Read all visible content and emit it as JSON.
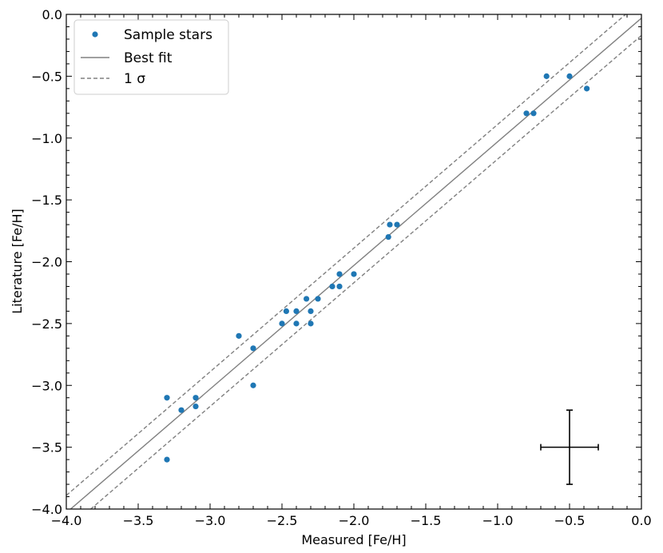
{
  "chart_data": {
    "type": "scatter",
    "xlabel": "Measured [Fe/H]",
    "ylabel": "Literature [Fe/H]",
    "xlim": [
      -4.0,
      0.0
    ],
    "ylim": [
      -4.0,
      0.0
    ],
    "x_ticks": [
      "−4.0",
      "−3.5",
      "−3.0",
      "−2.5",
      "−2.0",
      "−1.5",
      "−1.0",
      "−0.5",
      "0.0"
    ],
    "y_ticks": [
      "0.0",
      "−0.5",
      "−1.0",
      "−1.5",
      "−2.0",
      "−2.5",
      "−3.0",
      "−3.5",
      "−4.0"
    ],
    "grid": false,
    "legend_position": "top-left",
    "colors": {
      "points": "#1f77b4",
      "fit": "#808080",
      "sigma": "#808080",
      "errorbar": "#000000"
    },
    "series": [
      {
        "name": "Sample stars",
        "points": [
          [
            -3.3,
            -3.1
          ],
          [
            -3.3,
            -3.6
          ],
          [
            -3.2,
            -3.2
          ],
          [
            -3.1,
            -3.1
          ],
          [
            -3.1,
            -3.17
          ],
          [
            -2.8,
            -2.6
          ],
          [
            -2.7,
            -2.7
          ],
          [
            -2.7,
            -3.0
          ],
          [
            -2.5,
            -2.5
          ],
          [
            -2.47,
            -2.4
          ],
          [
            -2.4,
            -2.4
          ],
          [
            -2.4,
            -2.5
          ],
          [
            -2.33,
            -2.3
          ],
          [
            -2.3,
            -2.4
          ],
          [
            -2.3,
            -2.5
          ],
          [
            -2.25,
            -2.3
          ],
          [
            -2.15,
            -2.2
          ],
          [
            -2.1,
            -2.1
          ],
          [
            -2.1,
            -2.2
          ],
          [
            -2.0,
            -2.1
          ],
          [
            -1.76,
            -1.8
          ],
          [
            -1.75,
            -1.7
          ],
          [
            -1.7,
            -1.7
          ],
          [
            -0.8,
            -0.8
          ],
          [
            -0.75,
            -0.8
          ],
          [
            -0.66,
            -0.5
          ],
          [
            -0.5,
            -0.5
          ],
          [
            -0.38,
            -0.6
          ]
        ]
      },
      {
        "name": "Best fit",
        "line": {
          "slope": 1.0,
          "intercept": -0.03
        }
      },
      {
        "name": "1 σ",
        "offset": 0.14
      }
    ],
    "error_bar": {
      "x": -0.5,
      "y": -3.5,
      "xerr": 0.2,
      "yerr": 0.3
    }
  }
}
